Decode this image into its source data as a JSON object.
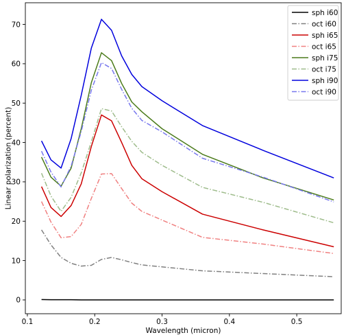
{
  "chart_data": {
    "type": "line",
    "title": "",
    "xlabel": "Wavelength (micron)",
    "ylabel": "Linear polarization (percent)",
    "xlim": [
      0.097,
      0.566
    ],
    "ylim": [
      -3.5,
      75.5
    ],
    "xticks": [
      0.1,
      0.2,
      0.3,
      0.4,
      0.5
    ],
    "xtick_labels": [
      "0.1",
      "0.2",
      "0.3",
      "0.4",
      "0.5"
    ],
    "yticks": [
      0,
      10,
      20,
      30,
      40,
      50,
      60,
      70
    ],
    "ytick_labels": [
      "0",
      "10",
      "20",
      "30",
      "40",
      "50",
      "60",
      "70"
    ],
    "grid": false,
    "legend_position": "top-right",
    "x": [
      0.121,
      0.135,
      0.15,
      0.165,
      0.18,
      0.195,
      0.21,
      0.225,
      0.24,
      0.255,
      0.27,
      0.3,
      0.36,
      0.45,
      0.555
    ],
    "series": [
      {
        "name": "sph i60",
        "color": "#000000",
        "dash": "solid",
        "values": [
          0.1,
          0.05,
          0.05,
          0.05,
          0.0,
          0.0,
          0.0,
          0.0,
          0.0,
          0.0,
          0.0,
          0.0,
          0.0,
          0.0,
          0.0
        ]
      },
      {
        "name": "oct i60",
        "color": "#7f7f7f",
        "dash": "dashdot",
        "values": [
          17.8,
          14.0,
          10.8,
          9.3,
          8.6,
          8.8,
          10.3,
          10.8,
          10.2,
          9.5,
          8.9,
          8.4,
          7.4,
          6.7,
          5.9
        ]
      },
      {
        "name": "sph i65",
        "color": "#cc0000",
        "dash": "solid",
        "values": [
          28.8,
          23.5,
          21.2,
          24.0,
          29.5,
          39.0,
          47.0,
          45.5,
          40.0,
          34.2,
          30.8,
          27.5,
          21.8,
          17.8,
          13.5
        ]
      },
      {
        "name": "oct i65",
        "color": "#f08080",
        "dash": "dashdot",
        "values": [
          25.0,
          19.8,
          15.8,
          16.1,
          19.2,
          25.8,
          32.0,
          32.1,
          28.3,
          24.6,
          22.5,
          20.3,
          15.9,
          14.2,
          11.8
        ]
      },
      {
        "name": "sph i75",
        "color": "#4a7a1a",
        "dash": "solid",
        "values": [
          36.3,
          31.2,
          28.9,
          33.5,
          43.5,
          55.2,
          62.8,
          60.8,
          55.0,
          50.3,
          47.8,
          43.5,
          37.0,
          31.0,
          25.4
        ]
      },
      {
        "name": "oct i75",
        "color": "#9dbb8a",
        "dash": "dashdot",
        "values": [
          32.2,
          26.4,
          22.5,
          26.1,
          32.3,
          40.2,
          48.6,
          48.0,
          44.0,
          40.3,
          37.5,
          34.2,
          28.6,
          24.8,
          19.6
        ]
      },
      {
        "name": "sph i90",
        "color": "#0000dd",
        "dash": "solid",
        "values": [
          40.4,
          35.6,
          33.5,
          41.0,
          52.0,
          64.0,
          71.3,
          68.5,
          62.0,
          57.3,
          54.2,
          50.6,
          44.3,
          38.0,
          31.0
        ]
      },
      {
        "name": "oct i90",
        "color": "#7777ee",
        "dash": "dashdot",
        "values": [
          37.8,
          32.5,
          28.7,
          34.0,
          42.8,
          53.3,
          60.3,
          58.8,
          53.5,
          48.7,
          45.6,
          42.7,
          36.0,
          31.2,
          24.9
        ]
      }
    ]
  }
}
